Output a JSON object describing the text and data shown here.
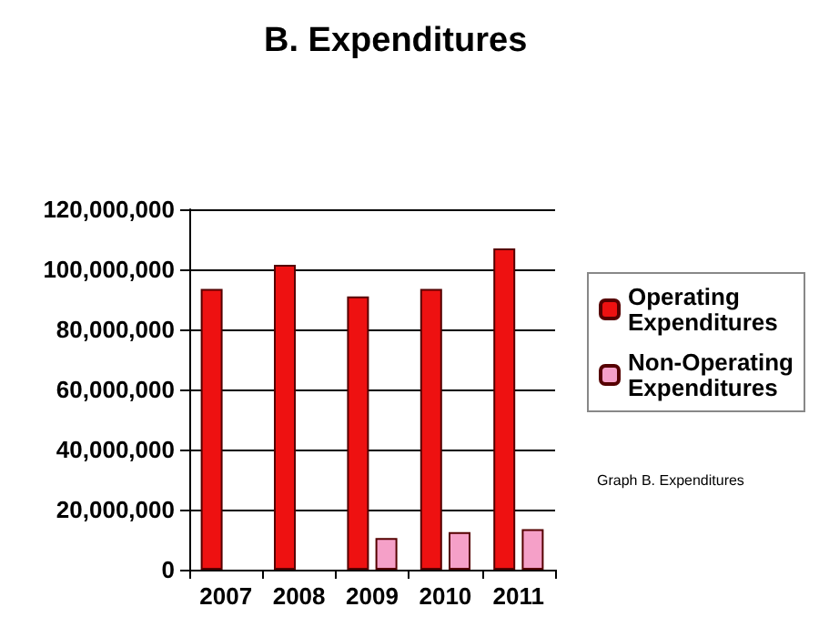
{
  "chart_data": {
    "type": "bar",
    "title": "B. Expenditures",
    "categories": [
      "2007",
      "2008",
      "2009",
      "2010",
      "2011"
    ],
    "series": [
      {
        "name": "Operating Expenditures",
        "color": "#ee1111",
        "values": [
          93500000,
          101500000,
          91000000,
          93500000,
          107000000
        ]
      },
      {
        "name": "Non-Operating Expenditures",
        "color": "#f5a0c8",
        "values": [
          null,
          null,
          10500000,
          12500000,
          13500000
        ]
      }
    ],
    "ylim": [
      0,
      120000000
    ],
    "yticks": [
      0,
      {
        "value": 20000000,
        "label": "20,000,000"
      },
      {
        "value": 40000000,
        "label": "40,000,000"
      },
      {
        "value": 60000000,
        "label": "60,000,000"
      },
      {
        "value": 80000000,
        "label": "80,000,000"
      },
      {
        "value": 100000000,
        "label": "100,000,000"
      },
      {
        "value": 120000000,
        "label": "120,000,000"
      }
    ],
    "grid": "y",
    "legend": "right",
    "annotations": [
      "Graph B. Expenditures"
    ]
  }
}
